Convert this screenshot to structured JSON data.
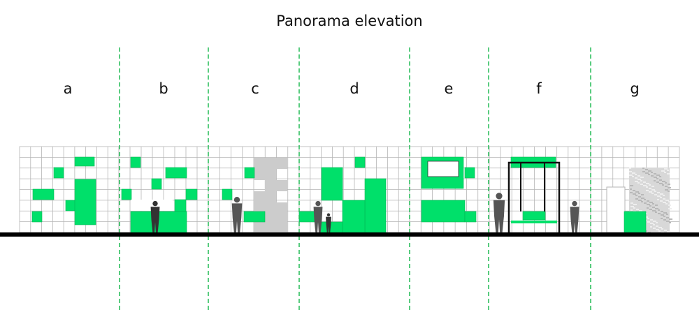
{
  "title": "Panorama elevation",
  "colors": {
    "green": "#00e06a",
    "divider": "#22bb55",
    "grid": "#b5b5b5",
    "ground": "#000000",
    "figure": "#555555",
    "gray_block": "#cccccc"
  },
  "sections": [
    {
      "label": "a"
    },
    {
      "label": "b"
    },
    {
      "label": "c"
    },
    {
      "label": "d"
    },
    {
      "label": "e"
    },
    {
      "label": "f"
    },
    {
      "label": "g"
    }
  ]
}
